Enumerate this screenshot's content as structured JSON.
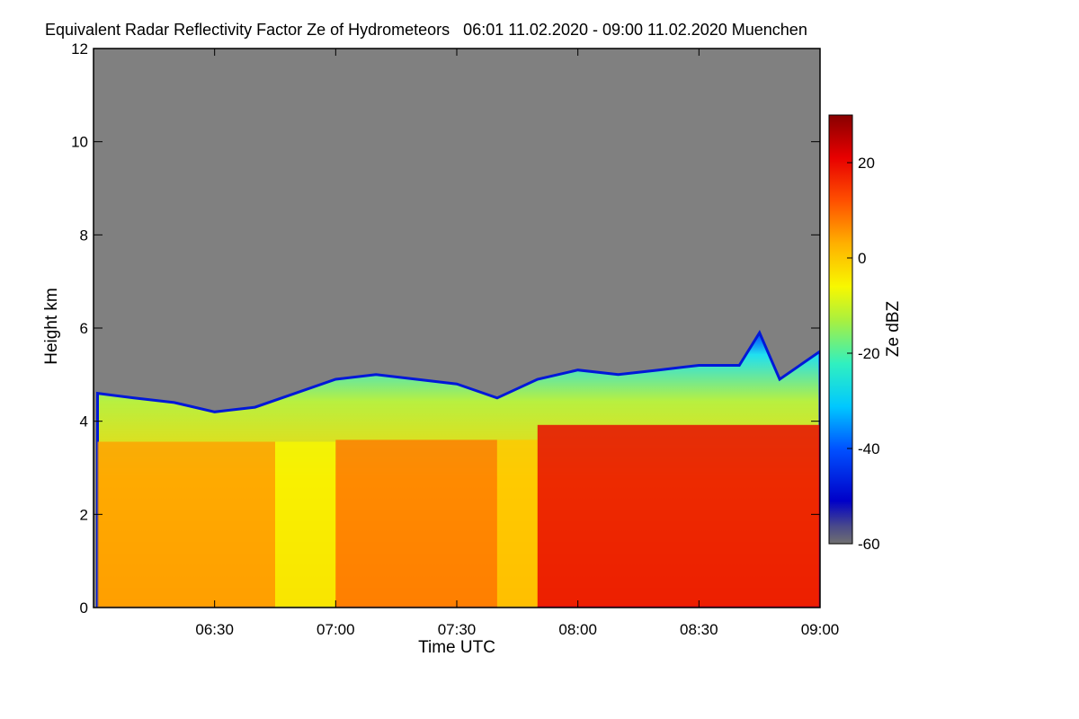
{
  "chart_data": {
    "type": "heatmap",
    "title": "Equivalent Radar Reflectivity Factor Ze of Hydrometeors   06:01 11.02.2020 - 09:00 11.02.2020 Muenchen",
    "xlabel": "Time UTC",
    "ylabel": "Height km",
    "x_ticks": [
      "06:30",
      "07:00",
      "07:30",
      "08:00",
      "08:30",
      "09:00"
    ],
    "y_ticks": [
      "0",
      "2",
      "4",
      "6",
      "8",
      "10",
      "12"
    ],
    "x_range": [
      "06:01",
      "09:00"
    ],
    "ylim": [
      0,
      12
    ],
    "colorbar": {
      "label": "Ze dBZ",
      "ticks": [
        "20",
        "0",
        "-20",
        "-40",
        "-60"
      ],
      "range": [
        -60,
        30
      ],
      "colormap": "jet",
      "no_signal_color": "#808080"
    },
    "echo_top_km": [
      {
        "time": "06:01",
        "height": 4.6
      },
      {
        "time": "06:10",
        "height": 4.5
      },
      {
        "time": "06:20",
        "height": 4.4
      },
      {
        "time": "06:30",
        "height": 4.2
      },
      {
        "time": "06:40",
        "height": 4.3
      },
      {
        "time": "06:50",
        "height": 4.6
      },
      {
        "time": "07:00",
        "height": 4.9
      },
      {
        "time": "07:10",
        "height": 5.0
      },
      {
        "time": "07:20",
        "height": 4.9
      },
      {
        "time": "07:30",
        "height": 4.8
      },
      {
        "time": "07:40",
        "height": 4.5
      },
      {
        "time": "07:50",
        "height": 4.9
      },
      {
        "time": "08:00",
        "height": 5.1
      },
      {
        "time": "08:10",
        "height": 5.0
      },
      {
        "time": "08:20",
        "height": 5.1
      },
      {
        "time": "08:30",
        "height": 5.2
      },
      {
        "time": "08:40",
        "height": 5.2
      },
      {
        "time": "08:45",
        "height": 5.9
      },
      {
        "time": "08:50",
        "height": 4.9
      },
      {
        "time": "09:00",
        "height": 5.5
      }
    ],
    "mean_reflectivity_dbz": [
      {
        "period": "06:01-06:45",
        "value": 5
      },
      {
        "period": "06:45-07:00",
        "value": -5
      },
      {
        "period": "07:00-07:40",
        "value": 10
      },
      {
        "period": "07:40-07:50",
        "value": 0
      },
      {
        "period": "07:50-09:00",
        "value": 20
      }
    ]
  }
}
